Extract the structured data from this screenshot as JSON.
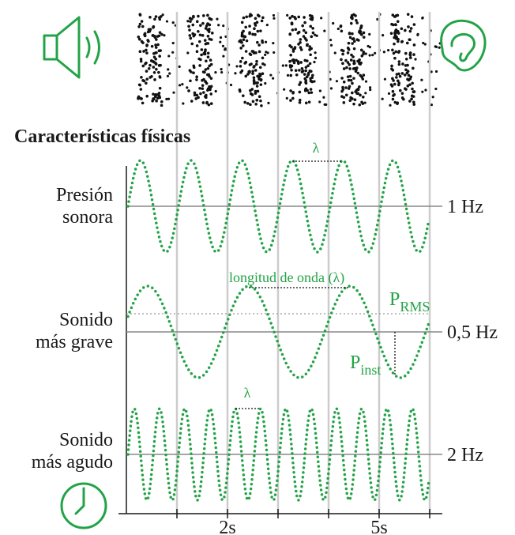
{
  "title": "Características físicas",
  "waves": [
    {
      "label": [
        "Presión",
        "sonora"
      ],
      "frequency": "1 Hz",
      "wavelength": "λ"
    },
    {
      "label": [
        "Sonido",
        "más grave"
      ],
      "frequency": "0,5 Hz",
      "wavelength": "longitud de onda (λ)",
      "rms": {
        "main": "P",
        "sub": "RMS"
      },
      "inst": {
        "main": "P",
        "sub": "inst"
      }
    },
    {
      "label": [
        "Sonido",
        "más agudo"
      ],
      "frequency": "2 Hz",
      "wavelength": "λ"
    }
  ],
  "time_ticks": [
    "2s",
    "5s"
  ]
}
